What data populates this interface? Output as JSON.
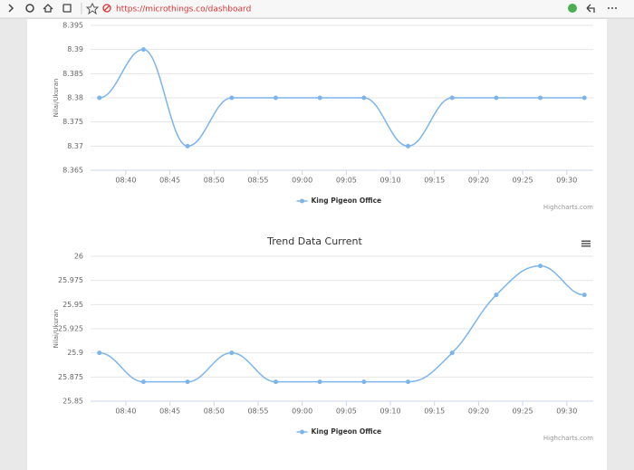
{
  "browser": {
    "url": "https://microthings.co/dashboard"
  },
  "chart_data": [
    {
      "type": "line",
      "yaxis_label": "Nilai/Ukuran",
      "x": [
        517,
        522,
        527,
        532,
        537,
        542,
        547,
        552,
        557,
        562,
        567,
        572
      ],
      "xlim": [
        516,
        573
      ],
      "xticks": [
        {
          "value": 520,
          "label": "08:40"
        },
        {
          "value": 525,
          "label": "08:45"
        },
        {
          "value": 530,
          "label": "08:50"
        },
        {
          "value": 535,
          "label": "08:55"
        },
        {
          "value": 540,
          "label": "09:00"
        },
        {
          "value": 545,
          "label": "09:05"
        },
        {
          "value": 550,
          "label": "09:10"
        },
        {
          "value": 555,
          "label": "09:15"
        },
        {
          "value": 560,
          "label": "09:20"
        },
        {
          "value": 565,
          "label": "09:25"
        },
        {
          "value": 570,
          "label": "09:30"
        }
      ],
      "ylim": [
        8.365,
        8.395
      ],
      "yticks": [
        8.365,
        8.37,
        8.375,
        8.38,
        8.385,
        8.39,
        8.395
      ],
      "grid": true,
      "series": [
        {
          "name": "King Pigeon Office",
          "color": "#7cb5ec",
          "values": [
            8.38,
            8.39,
            8.37,
            8.38,
            8.38,
            8.38,
            8.38,
            8.37,
            8.38,
            8.38,
            8.38,
            8.38
          ]
        }
      ],
      "credits": "Highcharts.com"
    },
    {
      "type": "line",
      "title": "Trend Data Current",
      "yaxis_label": "Nilai/Ukuran",
      "x": [
        517,
        522,
        527,
        532,
        537,
        542,
        547,
        552,
        557,
        562,
        567,
        572
      ],
      "xlim": [
        516,
        573
      ],
      "xticks": [
        {
          "value": 520,
          "label": "08:40"
        },
        {
          "value": 525,
          "label": "08:45"
        },
        {
          "value": 530,
          "label": "08:50"
        },
        {
          "value": 535,
          "label": "08:55"
        },
        {
          "value": 540,
          "label": "09:00"
        },
        {
          "value": 545,
          "label": "09:05"
        },
        {
          "value": 550,
          "label": "09:10"
        },
        {
          "value": 555,
          "label": "09:15"
        },
        {
          "value": 560,
          "label": "09:20"
        },
        {
          "value": 565,
          "label": "09:25"
        },
        {
          "value": 570,
          "label": "09:30"
        }
      ],
      "ylim": [
        25.85,
        26
      ],
      "yticks": [
        25.85,
        25.875,
        25.9,
        25.925,
        25.95,
        25.975,
        26
      ],
      "grid": true,
      "series": [
        {
          "name": "King Pigeon Office",
          "color": "#7cb5ec",
          "values": [
            25.9,
            25.87,
            25.87,
            25.9,
            25.87,
            25.87,
            25.87,
            25.87,
            25.9,
            25.96,
            25.99,
            25.96
          ]
        }
      ],
      "credits": "Highcharts.com"
    }
  ]
}
